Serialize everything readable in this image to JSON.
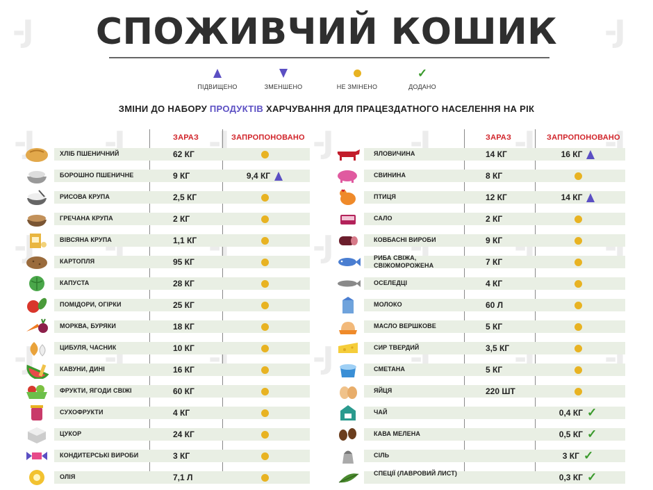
{
  "title": "СПОЖИВЧИЙ КОШИК",
  "legend": [
    {
      "symbol": "up",
      "label": "ПІДВИЩЕНО"
    },
    {
      "symbol": "down",
      "label": "ЗМЕНШЕНО"
    },
    {
      "symbol": "dot",
      "label": "НЕ ЗМІНЕНО"
    },
    {
      "symbol": "check",
      "label": "ДОДАНО"
    }
  ],
  "subtitle": {
    "before": "ЗМІНИ ДО НАБОРУ ",
    "highlight": "ПРОДУКТІВ",
    "after": " ХАРЧУВАННЯ ДЛЯ ПРАЦЕЗДАТНОГО НАСЕЛЕННЯ НА РІК"
  },
  "headers": {
    "now": "ЗАРАЗ",
    "proposed": "ЗАПРОПОНОВАНО"
  },
  "colors": {
    "accent_purple": "#5b4fc3",
    "header_red": "#d1242a",
    "dot_yellow": "#e8b322",
    "check_green": "#3a9a2c",
    "row_band": "#e9efe4"
  },
  "left_items": [
    {
      "icon": "bread-icon",
      "name": "ХЛІБ ПШЕНИЧНИЙ",
      "now": "62 КГ",
      "proposed_value": "",
      "proposed_symbol": "dot"
    },
    {
      "icon": "flour-bowl-icon",
      "name": "БОРОШНО ПШЕНИЧНЕ",
      "now": "9 КГ",
      "proposed_value": "9,4 КГ",
      "proposed_symbol": "up"
    },
    {
      "icon": "rice-bowl-icon",
      "name": "РИСОВА КРУПА",
      "now": "2,5 КГ",
      "proposed_value": "",
      "proposed_symbol": "dot"
    },
    {
      "icon": "buckwheat-bowl-icon",
      "name": "ГРЕЧАНА КРУПА",
      "now": "2 КГ",
      "proposed_value": "",
      "proposed_symbol": "dot"
    },
    {
      "icon": "oats-box-icon",
      "name": "ВІВСЯНА КРУПА",
      "now": "1,1 КГ",
      "proposed_value": "",
      "proposed_symbol": "dot"
    },
    {
      "icon": "potato-icon",
      "name": "КАРТОПЛЯ",
      "now": "95 КГ",
      "proposed_value": "",
      "proposed_symbol": "dot"
    },
    {
      "icon": "cabbage-icon",
      "name": "КАПУСТА",
      "now": "28 КГ",
      "proposed_value": "",
      "proposed_symbol": "dot"
    },
    {
      "icon": "tomato-cucumber-icon",
      "name": "ПОМІДОРИ, ОГІРКИ",
      "now": "25 КГ",
      "proposed_value": "",
      "proposed_symbol": "dot"
    },
    {
      "icon": "carrot-beet-icon",
      "name": "МОРКВА, БУРЯКИ",
      "now": "18 КГ",
      "proposed_value": "",
      "proposed_symbol": "dot"
    },
    {
      "icon": "onion-garlic-icon",
      "name": "ЦИБУЛЯ, ЧАСНИК",
      "now": "10 КГ",
      "proposed_value": "",
      "proposed_symbol": "dot"
    },
    {
      "icon": "watermelon-icon",
      "name": "КАВУНИ, ДИНІ",
      "now": "16 КГ",
      "proposed_value": "",
      "proposed_symbol": "dot"
    },
    {
      "icon": "fruit-basket-icon",
      "name": "ФРУКТИ, ЯГОДИ СВІЖІ",
      "now": "60 КГ",
      "proposed_value": "",
      "proposed_symbol": "dot"
    },
    {
      "icon": "dried-fruit-jar-icon",
      "name": "СУХОФРУКТИ",
      "now": "4 КГ",
      "proposed_value": "",
      "proposed_symbol": "dot"
    },
    {
      "icon": "sugar-cube-icon",
      "name": "ЦУКОР",
      "now": "24 КГ",
      "proposed_value": "",
      "proposed_symbol": "dot"
    },
    {
      "icon": "candy-icon",
      "name": "КОНДИТЕРСЬКІ ВИРОБИ",
      "now": "3 КГ",
      "proposed_value": "",
      "proposed_symbol": "dot"
    },
    {
      "icon": "sunflower-icon",
      "name": "ОЛІЯ",
      "now": "7,1 Л",
      "proposed_value": "",
      "proposed_symbol": "dot"
    }
  ],
  "right_items": [
    {
      "icon": "cow-icon",
      "name": "ЯЛОВИЧИНА",
      "now": "14 КГ",
      "proposed_value": "16 КГ",
      "proposed_symbol": "up"
    },
    {
      "icon": "pig-icon",
      "name": "СВИНИНА",
      "now": "8 КГ",
      "proposed_value": "",
      "proposed_symbol": "dot"
    },
    {
      "icon": "chicken-icon",
      "name": "ПТИЦЯ",
      "now": "12 КГ",
      "proposed_value": "14 КГ",
      "proposed_symbol": "up"
    },
    {
      "icon": "lard-icon",
      "name": "САЛО",
      "now": "2 КГ",
      "proposed_value": "",
      "proposed_symbol": "dot"
    },
    {
      "icon": "sausage-icon",
      "name": "КОВБАСНІ ВИРОБИ",
      "now": "9 КГ",
      "proposed_value": "",
      "proposed_symbol": "dot"
    },
    {
      "icon": "fish-icon",
      "name": "РИБА СВІЖА, СВІЖОМОРОЖЕНА",
      "now": "7 КГ",
      "proposed_value": "",
      "proposed_symbol": "dot"
    },
    {
      "icon": "herring-icon",
      "name": "ОСЕЛЕДЦІ",
      "now": "4 КГ",
      "proposed_value": "",
      "proposed_symbol": "dot"
    },
    {
      "icon": "milk-carton-icon",
      "name": "МОЛОКО",
      "now": "60 Л",
      "proposed_value": "",
      "proposed_symbol": "dot"
    },
    {
      "icon": "butter-dish-icon",
      "name": "МАСЛО ВЕРШКОВЕ",
      "now": "5 КГ",
      "proposed_value": "",
      "proposed_symbol": "dot"
    },
    {
      "icon": "cheese-icon",
      "name": "СИР ТВЕРДИЙ",
      "now": "3,5 КГ",
      "proposed_value": "",
      "proposed_symbol": "dot"
    },
    {
      "icon": "sour-cream-icon",
      "name": "СМЕТАНА",
      "now": "5 КГ",
      "proposed_value": "",
      "proposed_symbol": "dot"
    },
    {
      "icon": "eggs-icon",
      "name": "ЯЙЦЯ",
      "now": "220 ШТ",
      "proposed_value": "",
      "proposed_symbol": "dot"
    },
    {
      "icon": "tea-bag-icon",
      "name": "ЧАЙ",
      "now": "",
      "proposed_value": "0,4 КГ",
      "proposed_symbol": "check"
    },
    {
      "icon": "coffee-beans-icon",
      "name": "КАВА МЕЛЕНА",
      "now": "",
      "proposed_value": "0,5 КГ",
      "proposed_symbol": "check"
    },
    {
      "icon": "salt-shaker-icon",
      "name": "СІЛЬ",
      "now": "",
      "proposed_value": "3 КГ",
      "proposed_symbol": "check"
    },
    {
      "icon": "bay-leaf-icon",
      "name": "СПЕЦІЇ (ЛАВРОВИЙ ЛИСТ)",
      "now": "",
      "proposed_value": "0,3 КГ",
      "proposed_symbol": "check"
    }
  ]
}
